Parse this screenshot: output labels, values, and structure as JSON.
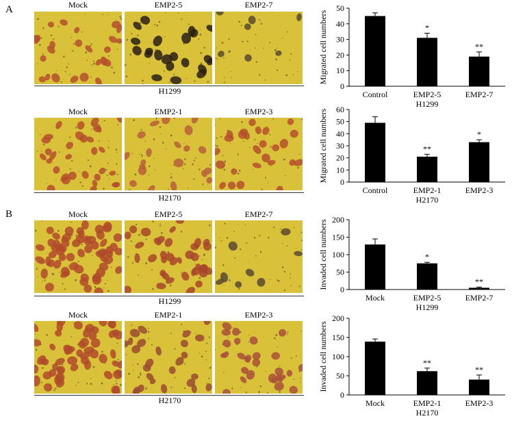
{
  "panels": [
    {
      "letter": "A",
      "rows": [
        {
          "image_labels": [
            "Mock",
            "EMP2-5",
            "EMP2-7"
          ],
          "cell_line": "H1299",
          "micrographs": [
            {
              "stain": "light",
              "density": 24,
              "color": "#b5502c"
            },
            {
              "stain": "dark",
              "density": 22,
              "color": "#2a1f14"
            },
            {
              "stain": "sparse",
              "density": 7,
              "color": "#5a4a30"
            }
          ]
        },
        {
          "image_labels": [
            "Mock",
            "EMP2-1",
            "EMP2-3"
          ],
          "cell_line": "H2170",
          "micrographs": [
            {
              "stain": "light",
              "density": 32,
              "color": "#b5502c"
            },
            {
              "stain": "light",
              "density": 20,
              "color": "#b8603a"
            },
            {
              "stain": "light",
              "density": 26,
              "color": "#b5502c"
            }
          ]
        }
      ]
    },
    {
      "letter": "B",
      "rows": [
        {
          "image_labels": [
            "Mock",
            "EMP2-5",
            "EMP2-7"
          ],
          "cell_line": "H1299",
          "micrographs": [
            {
              "stain": "dense",
              "density": 60,
              "color": "#b04a2a"
            },
            {
              "stain": "medium",
              "density": 38,
              "color": "#a8462a"
            },
            {
              "stain": "sparse",
              "density": 8,
              "color": "#5a4a30"
            }
          ]
        },
        {
          "image_labels": [
            "Mock",
            "EMP2-1",
            "EMP2-3"
          ],
          "cell_line": "H2170",
          "micrographs": [
            {
              "stain": "dense",
              "density": 55,
              "color": "#b04a2a"
            },
            {
              "stain": "medium",
              "density": 26,
              "color": "#9a4a30"
            },
            {
              "stain": "medium",
              "density": 28,
              "color": "#a8503a"
            }
          ]
        }
      ]
    }
  ],
  "chart_data": [
    {
      "type": "bar",
      "categories": [
        "Control",
        "EMP2-5",
        "EMP2-7"
      ],
      "values": [
        45,
        31,
        19
      ],
      "errors": [
        2,
        3,
        3
      ],
      "significance": [
        "",
        "*",
        "**"
      ],
      "ylabel": "Migrated cell numbers",
      "ylim": [
        0,
        50
      ],
      "yticks": [
        0,
        10,
        20,
        30,
        40,
        50
      ],
      "group_label": "H1299"
    },
    {
      "type": "bar",
      "categories": [
        "Control",
        "EMP2-1",
        "EMP2-3"
      ],
      "values": [
        49,
        21,
        33
      ],
      "errors": [
        5,
        2,
        2
      ],
      "significance": [
        "",
        "**",
        "*"
      ],
      "ylabel": "Migrated cell numbers",
      "ylim": [
        0,
        60
      ],
      "yticks": [
        0,
        10,
        20,
        30,
        40,
        50,
        60
      ],
      "group_label": "H2170"
    },
    {
      "type": "bar",
      "categories": [
        "Mock",
        "EMP2-5",
        "EMP2-7"
      ],
      "values": [
        129,
        75,
        5
      ],
      "errors": [
        16,
        3,
        2
      ],
      "significance": [
        "",
        "*",
        "**"
      ],
      "ylabel": "Invaded cell numbers",
      "ylim": [
        0,
        200
      ],
      "yticks": [
        0,
        50,
        100,
        150,
        200
      ],
      "group_label": "H1299"
    },
    {
      "type": "bar",
      "categories": [
        "Mock",
        "EMP2-1",
        "EMP2-3"
      ],
      "values": [
        139,
        62,
        40
      ],
      "errors": [
        7,
        8,
        12
      ],
      "significance": [
        "",
        "**",
        "**"
      ],
      "ylabel": "Invaded cell numbers",
      "ylim": [
        0,
        200
      ],
      "yticks": [
        0,
        50,
        100,
        150,
        200
      ],
      "group_label": "H2170"
    }
  ],
  "colors": {
    "background_yellow": "#d9c23a",
    "bar_fill": "#000000"
  }
}
